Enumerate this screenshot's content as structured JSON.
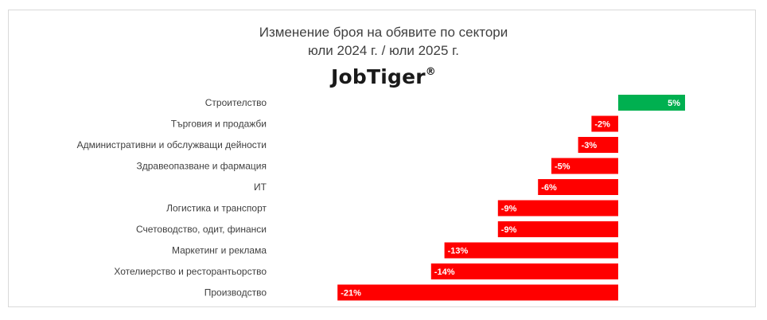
{
  "chart_data": {
    "type": "bar",
    "orientation": "horizontal",
    "title": "Изменение броя на обявите по сектори",
    "subtitle": "юли 2024 г. / юли 2025 г.",
    "brand": "JobTiger",
    "brand_mark": "®",
    "categories": [
      "Строителство",
      "Търговия и продажби",
      "Административни и обслужващи дейности",
      "Здравеопазване и фармация",
      "ИТ",
      "Логистика и транспорт",
      "Счетоводство, одит, финанси",
      "Маркетинг и реклама",
      "Хотелиерство и ресторантьорство",
      "Производство"
    ],
    "values": [
      5,
      -2,
      -3,
      -5,
      -6,
      -9,
      -9,
      -13,
      -14,
      -21
    ],
    "data_labels": [
      "5%",
      "-2%",
      "-3%",
      "-5%",
      "-6%",
      "-9%",
      "-9%",
      "-13%",
      "-14%",
      "-21%"
    ],
    "unit": "%",
    "colors": {
      "positive": "#00b050",
      "negative": "#ff0000"
    },
    "grid": false,
    "legend": "none"
  }
}
